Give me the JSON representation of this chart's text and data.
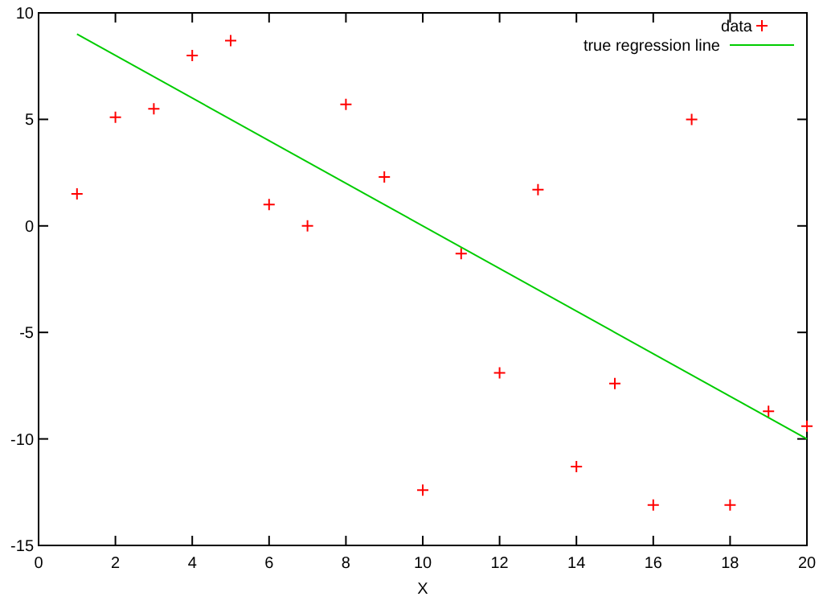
{
  "chart_data": {
    "type": "scatter",
    "xlabel": "X",
    "xlim": [
      0,
      20
    ],
    "ylim": [
      -15,
      10
    ],
    "xticks": [
      0,
      2,
      4,
      6,
      8,
      10,
      12,
      14,
      16,
      18,
      20
    ],
    "yticks": [
      -15,
      -10,
      -5,
      0,
      5,
      10
    ],
    "grid": false,
    "legend": "top right",
    "series": [
      {
        "name": "data",
        "color": "#ff0000",
        "marker": "cross",
        "x": [
          1,
          2,
          3,
          4,
          5,
          6,
          7,
          8,
          9,
          10,
          11,
          12,
          13,
          14,
          15,
          16,
          17,
          18,
          19,
          20
        ],
        "values": [
          1.5,
          5.1,
          5.5,
          8.0,
          8.7,
          1.0,
          0,
          5.7,
          2.3,
          -12.4,
          -1.3,
          -6.9,
          1.7,
          -11.3,
          -7.4,
          -13.1,
          5.0,
          -13.1,
          -8.7,
          -9.4
        ]
      },
      {
        "name": "true regression line",
        "type": "line",
        "color": "#00cc00",
        "marker": "none",
        "line_style": "solid",
        "x": [
          1,
          20
        ],
        "values": [
          9,
          -10
        ]
      }
    ]
  }
}
